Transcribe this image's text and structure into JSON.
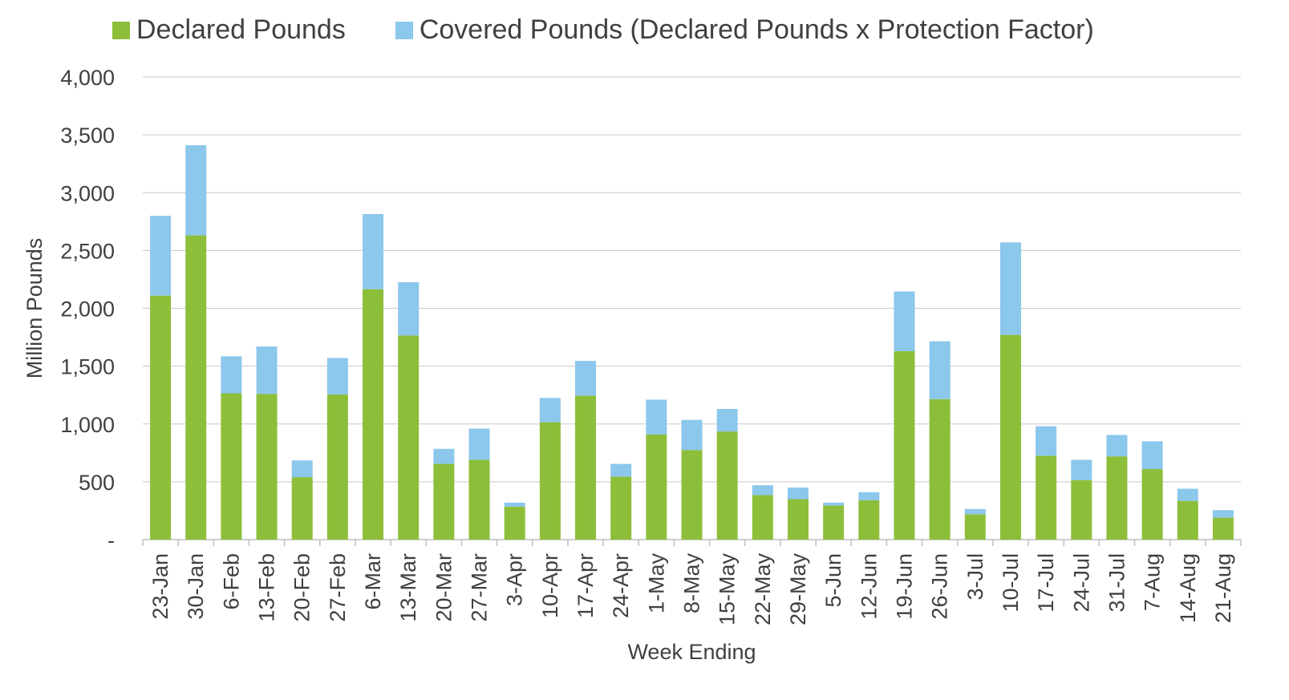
{
  "chart_data": {
    "type": "bar",
    "stacked": true,
    "xlabel": "Week Ending",
    "ylabel": "Million Pounds",
    "ylim": [
      0,
      4000
    ],
    "yticks": [
      {
        "value": 0,
        "label": "-"
      },
      {
        "value": 500,
        "label": "500"
      },
      {
        "value": 1000,
        "label": "1,000"
      },
      {
        "value": 1500,
        "label": "1,500"
      },
      {
        "value": 2000,
        "label": "2,000"
      },
      {
        "value": 2500,
        "label": "2,500"
      },
      {
        "value": 3000,
        "label": "3,000"
      },
      {
        "value": 3500,
        "label": "3,500"
      },
      {
        "value": 4000,
        "label": "4,000"
      }
    ],
    "grid": true,
    "legend_position": "top",
    "categories": [
      "23-Jan",
      "30-Jan",
      "6-Feb",
      "13-Feb",
      "20-Feb",
      "27-Feb",
      "6-Mar",
      "13-Mar",
      "20-Mar",
      "27-Mar",
      "3-Apr",
      "10-Apr",
      "17-Apr",
      "24-Apr",
      "1-May",
      "8-May",
      "15-May",
      "22-May",
      "29-May",
      "5-Jun",
      "12-Jun",
      "19-Jun",
      "26-Jun",
      "3-Jul",
      "10-Jul",
      "17-Jul",
      "24-Jul",
      "31-Jul",
      "7-Aug",
      "14-Aug",
      "21-Aug"
    ],
    "series": [
      {
        "name": "Declared Pounds",
        "color": "#8DBE3A",
        "values": [
          2110,
          2630,
          1265,
          1260,
          540,
          1255,
          2165,
          1765,
          655,
          690,
          285,
          1015,
          1245,
          545,
          910,
          775,
          935,
          385,
          350,
          295,
          340,
          1630,
          1215,
          220,
          1770,
          725,
          515,
          720,
          610,
          335,
          190
        ]
      },
      {
        "name": "Covered Pounds (Declared Pounds x Protection Factor)",
        "color": "#8CC7EC",
        "values": [
          690,
          780,
          320,
          410,
          145,
          315,
          650,
          460,
          130,
          270,
          35,
          210,
          300,
          110,
          300,
          260,
          195,
          85,
          100,
          25,
          70,
          515,
          500,
          45,
          800,
          255,
          175,
          185,
          240,
          105,
          65
        ]
      }
    ]
  }
}
